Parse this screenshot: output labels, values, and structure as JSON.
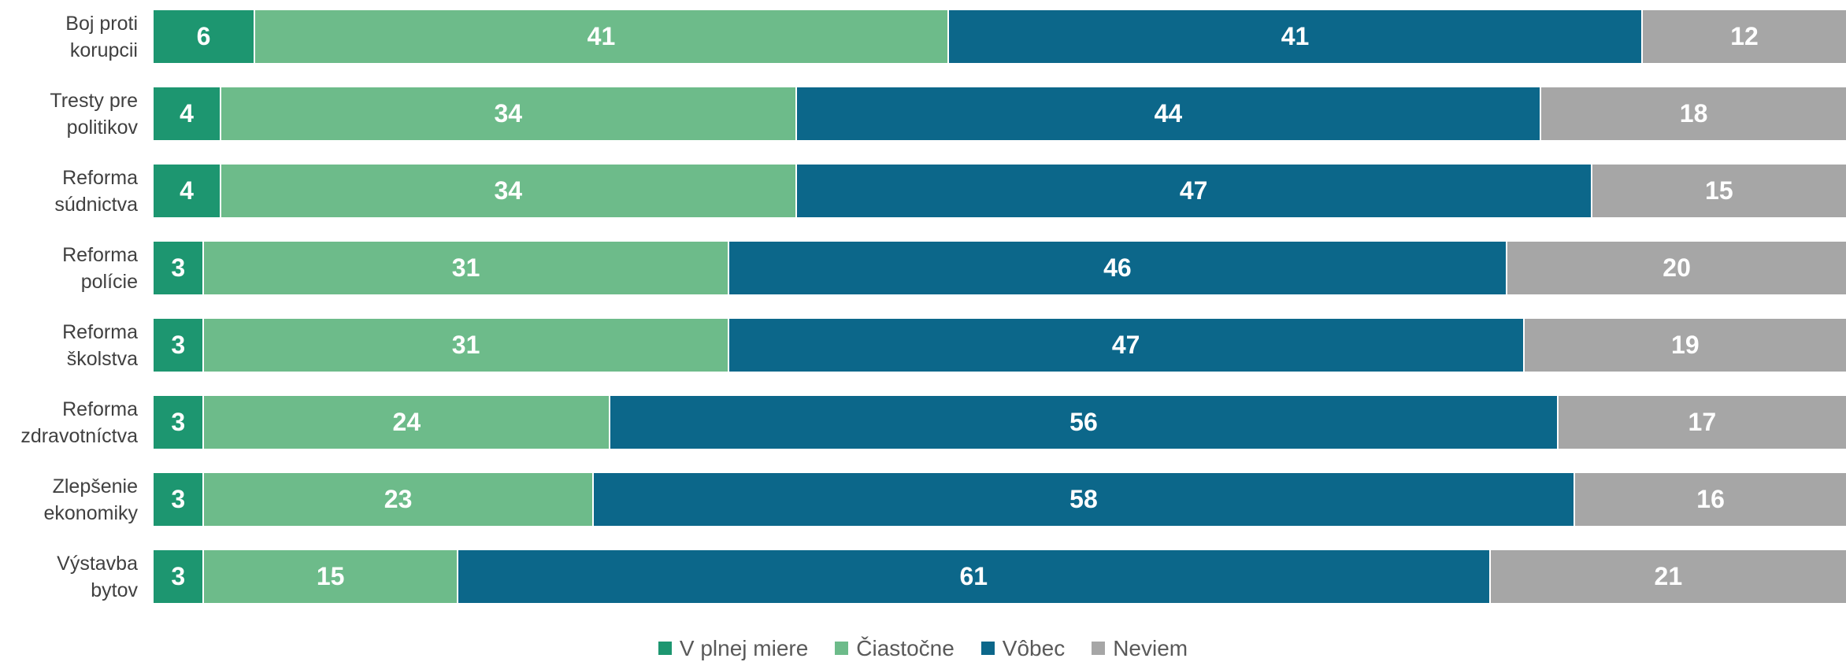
{
  "chart_data": {
    "type": "bar",
    "orientation": "horizontal",
    "stacked": true,
    "categories": [
      [
        "Boj proti",
        "korupcii"
      ],
      [
        "Tresty pre",
        "politikov"
      ],
      [
        "Reforma",
        "súdnictva"
      ],
      [
        "Reforma",
        "polície"
      ],
      [
        "Reforma",
        "školstva"
      ],
      [
        "Reforma",
        "zdravotníctva"
      ],
      [
        "Zlepšenie",
        "ekonomiky"
      ],
      [
        "Výstavba",
        "bytov"
      ]
    ],
    "series": [
      {
        "name": "V plnej miere",
        "color": "#1d9670",
        "values": [
          6,
          4,
          4,
          3,
          3,
          3,
          3,
          3
        ]
      },
      {
        "name": "Čiastočne",
        "color": "#6dbb8a",
        "values": [
          41,
          34,
          34,
          31,
          31,
          24,
          23,
          15
        ]
      },
      {
        "name": "Vôbec",
        "color": "#0c678a",
        "values": [
          41,
          44,
          47,
          46,
          47,
          56,
          58,
          61
        ]
      },
      {
        "name": "Neviem",
        "color": "#a6a6a6",
        "values": [
          12,
          18,
          15,
          20,
          19,
          17,
          16,
          21
        ]
      }
    ],
    "legend_position": "bottom",
    "grid": false
  }
}
